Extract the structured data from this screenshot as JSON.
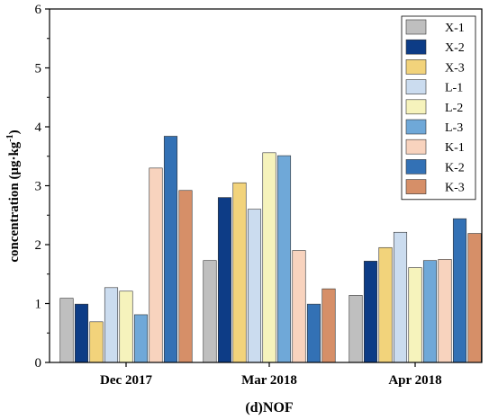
{
  "chart_data": {
    "type": "bar",
    "title": "",
    "xlabel": "(d)NOF",
    "ylabel": "concentration (μg·kg",
    "ylabel_sup": "-1",
    "ylabel_close": ")",
    "ylim": [
      0,
      6
    ],
    "yticks": [
      "0",
      "1",
      "2",
      "3",
      "4",
      "5",
      "6"
    ],
    "categories": [
      "Dec 2017",
      "Mar 2018",
      "Apr 2018"
    ],
    "legend_position": "top-right",
    "grid": false,
    "series": [
      {
        "name": "X-1",
        "color": "#bfbfbf",
        "values": [
          1.09,
          1.73,
          1.14
        ]
      },
      {
        "name": "X-2",
        "color": "#0d3c86",
        "values": [
          0.99,
          2.8,
          1.72
        ]
      },
      {
        "name": "X-3",
        "color": "#f2d37b",
        "values": [
          0.69,
          3.05,
          1.95
        ]
      },
      {
        "name": "L-1",
        "color": "#cbdcef",
        "values": [
          1.27,
          2.6,
          2.21
        ]
      },
      {
        "name": "L-2",
        "color": "#f6f3bc",
        "values": [
          1.21,
          3.56,
          1.61
        ]
      },
      {
        "name": "L-3",
        "color": "#6fa8d8",
        "values": [
          0.81,
          3.51,
          1.73
        ]
      },
      {
        "name": "K-1",
        "color": "#f8d3be",
        "values": [
          3.3,
          1.9,
          1.75
        ]
      },
      {
        "name": "K-2",
        "color": "#3371b5",
        "values": [
          3.84,
          0.99,
          2.44
        ]
      },
      {
        "name": "K-3",
        "color": "#d68f68",
        "values": [
          2.92,
          1.25,
          2.19
        ]
      }
    ]
  }
}
